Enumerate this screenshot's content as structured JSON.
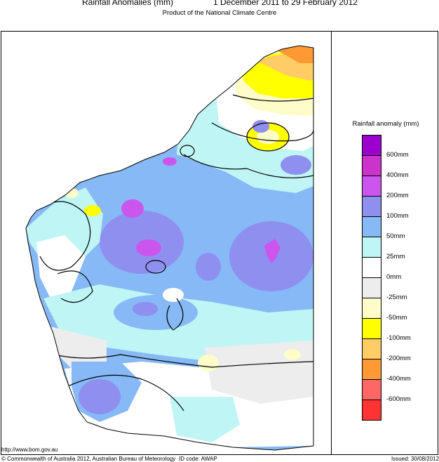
{
  "header": {
    "title": "Rainfall Anomalies (mm)",
    "period": "1 December 2011 to 29 February 2012",
    "subtitle": "Product of the National Climate Centre"
  },
  "legend": {
    "title": "Rainfall anomaly (mm)",
    "classes": [
      {
        "color": "#9b00cf"
      },
      {
        "color": "#cc33cc"
      },
      {
        "color": "#cc55ee"
      },
      {
        "color": "#8f8ff0"
      },
      {
        "color": "#86b9f5"
      },
      {
        "color": "#bff5f5"
      },
      {
        "color": "#ffffff"
      },
      {
        "color": "#ededed"
      },
      {
        "color": "#fefcc8"
      },
      {
        "color": "#ffff00"
      },
      {
        "color": "#ffcc66"
      },
      {
        "color": "#ff9933"
      },
      {
        "color": "#ff6666"
      },
      {
        "color": "#ff3333"
      }
    ],
    "ticks": [
      "600mm",
      "400mm",
      "200mm",
      "100mm",
      "50mm",
      "25mm",
      "0mm",
      "-25mm",
      "-50mm",
      "-100mm",
      "-200mm",
      "-400mm",
      "-600mm"
    ]
  },
  "footer": {
    "url": "http://www.bom.gov.au",
    "copyright": "© Commonwealth of Australia 2012, Australian Bureau of Meteorology",
    "id_code": "ID code: AWAP",
    "issued": "Issued: 30/08/2012"
  }
}
